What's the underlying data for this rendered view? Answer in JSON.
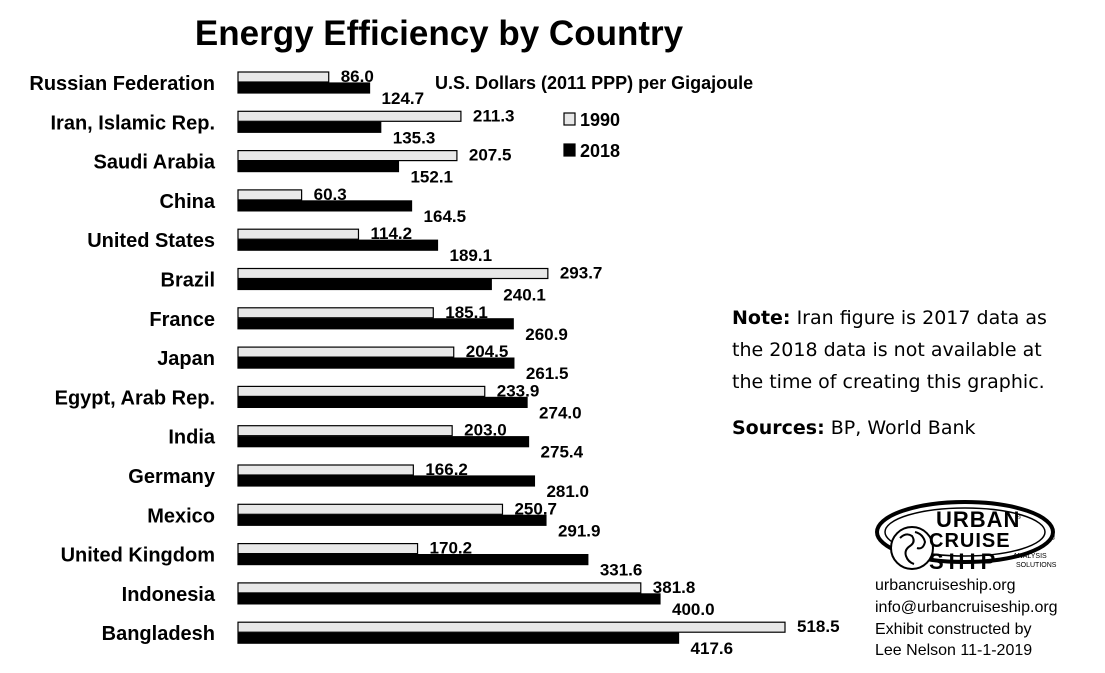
{
  "chart_data": {
    "type": "bar",
    "orientation": "horizontal",
    "title": "Energy Efficiency by Country",
    "subtitle": "U.S. Dollars (2011 PPP) per Gigajoule",
    "categories": [
      "Russian Federation",
      "Iran, Islamic Rep.",
      "Saudi Arabia",
      "China",
      "United States",
      "Brazil",
      "France",
      "Japan",
      "Egypt, Arab Rep.",
      "India",
      "Germany",
      "Mexico",
      "United Kingdom",
      "Indonesia",
      "Bangladesh"
    ],
    "series": [
      {
        "name": "1990",
        "color": "#e8e8e8",
        "values": [
          86.0,
          211.3,
          207.5,
          60.3,
          114.2,
          293.7,
          185.1,
          204.5,
          233.9,
          203.0,
          166.2,
          250.7,
          170.2,
          381.8,
          518.5
        ]
      },
      {
        "name": "2018",
        "color": "#000000",
        "values": [
          124.7,
          135.3,
          152.1,
          164.5,
          189.1,
          240.1,
          260.9,
          261.5,
          274.0,
          275.4,
          281.0,
          291.9,
          331.6,
          400.0,
          417.6
        ]
      }
    ],
    "value_labels_1990": [
      "86.0",
      "211.3",
      "207.5",
      "60.3",
      "114.2",
      "293.7",
      "185.1",
      "204.5",
      "233.9",
      "203.0",
      "166.2",
      "250.7",
      "170.2",
      "381.8",
      "518.5"
    ],
    "value_labels_2018": [
      "124.7",
      "135.3",
      "152.1",
      "164.5",
      "189.1",
      "240.1",
      "260.9",
      "261.5",
      "274.0",
      "275.4",
      "281.0",
      "291.9",
      "331.6",
      "400.0",
      "417.6"
    ],
    "xlim": [
      0,
      518.5
    ],
    "grid": false,
    "legend": "top-center"
  },
  "note": {
    "lead": "Note:",
    "line1": " Iran figure is 2017 data as",
    "line2": "the 2018 data is not available at",
    "line3": "the time of creating this graphic.",
    "sources_lead": "Sources:",
    "sources": " BP, World Bank"
  },
  "logo": {
    "urban": "URBAN",
    "cruise": "CRUISE",
    "ship": "SHIP",
    "analysis": "ANALYSIS",
    "solutions": "SOLUTIONS",
    "reg": "®"
  },
  "credits": {
    "site": "urbancruiseship.org",
    "email": "info@urbancruiseship.org",
    "line3": "Exhibit constructed by",
    "line4": "Lee Nelson 11-1-2019"
  }
}
